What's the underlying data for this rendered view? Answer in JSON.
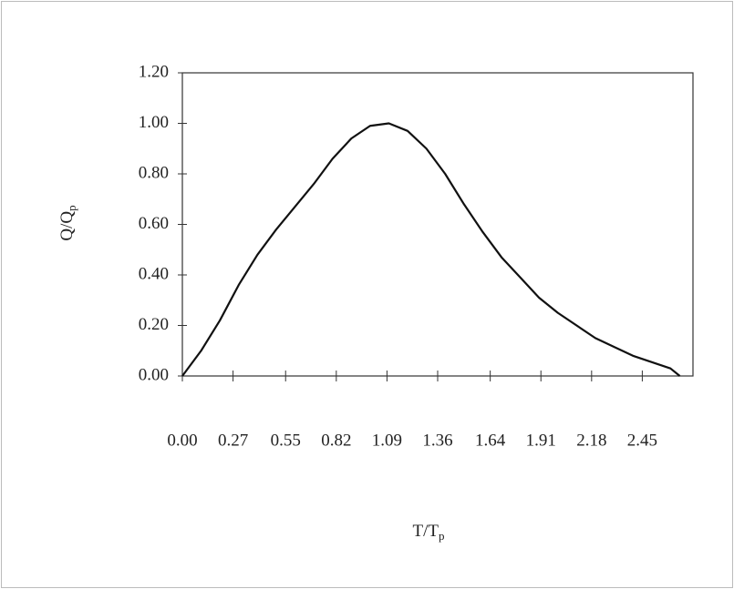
{
  "chart_data": {
    "type": "line",
    "ylabel": "Q/Q",
    "ylabel_subscript": "p",
    "xlabel": "T/T",
    "xlabel_subscript": "p",
    "x": [
      0,
      0.1,
      0.2,
      0.3,
      0.4,
      0.5,
      0.6,
      0.7,
      0.8,
      0.9,
      1.0,
      1.1,
      1.2,
      1.3,
      1.4,
      1.5,
      1.6,
      1.7,
      1.8,
      1.9,
      2.0,
      2.2,
      2.4,
      2.6,
      2.65
    ],
    "series": [
      {
        "color": "#111111",
        "values": [
          0,
          0.1,
          0.22,
          0.36,
          0.48,
          0.58,
          0.67,
          0.76,
          0.86,
          0.94,
          0.99,
          1.0,
          0.97,
          0.9,
          0.8,
          0.68,
          0.57,
          0.47,
          0.39,
          0.31,
          0.25,
          0.15,
          0.08,
          0.03,
          0.0
        ]
      }
    ],
    "xlim": [
      0,
      2.72
    ],
    "ylim": [
      0,
      1.2
    ],
    "xticks": [
      {
        "value": 0,
        "label": "0.00"
      },
      {
        "value": 0.27,
        "label": "0.27"
      },
      {
        "value": 0.55,
        "label": "0.55"
      },
      {
        "value": 0.82,
        "label": "0.82"
      },
      {
        "value": 1.09,
        "label": "1.09"
      },
      {
        "value": 1.36,
        "label": "1.36"
      },
      {
        "value": 1.64,
        "label": "1.64"
      },
      {
        "value": 1.91,
        "label": "1.91"
      },
      {
        "value": 2.18,
        "label": "2.18"
      },
      {
        "value": 2.45,
        "label": "2.45"
      }
    ],
    "yticks": [
      {
        "value": 0,
        "label": "0.00"
      },
      {
        "value": 0.2,
        "label": "0.20"
      },
      {
        "value": 0.4,
        "label": "0.40"
      },
      {
        "value": 0.6,
        "label": "0.60"
      },
      {
        "value": 0.8,
        "label": "0.80"
      },
      {
        "value": 1.0,
        "label": "1.00"
      },
      {
        "value": 1.2,
        "label": "1.20"
      }
    ],
    "grid": false
  }
}
